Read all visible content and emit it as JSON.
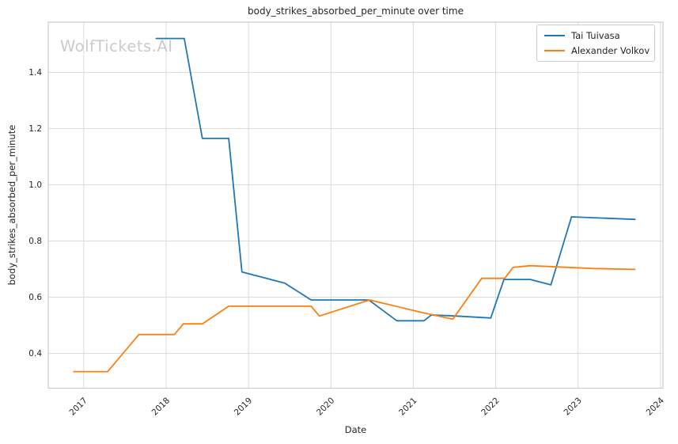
{
  "watermark": "WolfTickets.AI",
  "style": {
    "background": "#ffffff",
    "grid_color": "#dcdcdc",
    "spine_color": "#cccccc",
    "text_color": "#262626",
    "watermark_color": "#c9cbcc",
    "series_blue": "#1f77b4",
    "series_orange": "#ff7f0e"
  },
  "chart_data": {
    "type": "line",
    "title": "body_strikes_absorbed_per_minute over time",
    "xlabel": "Date",
    "ylabel": "body_strikes_absorbed_per_minute",
    "xlim": [
      2016.57,
      2024.03
    ],
    "ylim": [
      0.276,
      1.579
    ],
    "x_tick_values": [
      2017,
      2018,
      2019,
      2020,
      2021,
      2022,
      2023,
      2024
    ],
    "x_tick_labels": [
      "2017",
      "2018",
      "2019",
      "2020",
      "2021",
      "2022",
      "2023",
      "2024"
    ],
    "y_tick_values": [
      0.4,
      0.6,
      0.8,
      1.0,
      1.2,
      1.4
    ],
    "y_tick_labels": [
      "0.4",
      "0.6",
      "0.8",
      "1.0",
      "1.2",
      "1.4"
    ],
    "grid": true,
    "legend_position": "upper right",
    "series": [
      {
        "name": "Tai Tuivasa",
        "color": "#1f77b4",
        "points": [
          [
            2017.88,
            1.521
          ],
          [
            2018.22,
            1.521
          ],
          [
            2018.44,
            1.165
          ],
          [
            2018.76,
            1.165
          ],
          [
            2018.92,
            0.69
          ],
          [
            2019.44,
            0.65
          ],
          [
            2019.76,
            0.59
          ],
          [
            2020.46,
            0.59
          ],
          [
            2020.8,
            0.516
          ],
          [
            2021.13,
            0.516
          ],
          [
            2021.22,
            0.537
          ],
          [
            2021.52,
            0.533
          ],
          [
            2021.94,
            0.526
          ],
          [
            2022.1,
            0.663
          ],
          [
            2022.42,
            0.663
          ],
          [
            2022.67,
            0.644
          ],
          [
            2022.92,
            0.886
          ],
          [
            2023.69,
            0.877
          ]
        ]
      },
      {
        "name": "Alexander Volkov",
        "color": "#ff7f0e",
        "points": [
          [
            2016.88,
            0.335
          ],
          [
            2017.29,
            0.335
          ],
          [
            2017.67,
            0.467
          ],
          [
            2018.1,
            0.467
          ],
          [
            2018.21,
            0.505
          ],
          [
            2018.44,
            0.505
          ],
          [
            2018.76,
            0.568
          ],
          [
            2019.76,
            0.568
          ],
          [
            2019.86,
            0.533
          ],
          [
            2020.47,
            0.59
          ],
          [
            2021.1,
            0.546
          ],
          [
            2021.48,
            0.522
          ],
          [
            2021.83,
            0.667
          ],
          [
            2022.11,
            0.667
          ],
          [
            2022.21,
            0.706
          ],
          [
            2022.42,
            0.712
          ],
          [
            2023.19,
            0.702
          ],
          [
            2023.69,
            0.699
          ]
        ]
      }
    ]
  }
}
